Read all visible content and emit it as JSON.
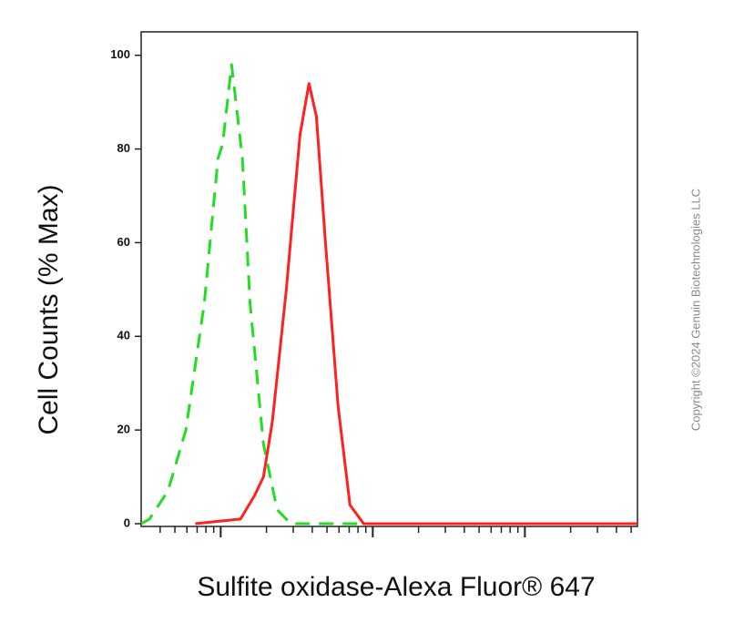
{
  "chart_data": {
    "type": "line",
    "y_label": "Cell Counts (% Max)",
    "x_label": "Sulfite oxidase-Alexa Fluor® 647",
    "copyright": "Copyright ©2024 Genuin Biotechnologies LLC",
    "xscale": "log",
    "xlim": [
      30,
      55000
    ],
    "xticks": [
      40,
      50,
      60,
      70,
      80,
      90,
      100,
      200,
      300,
      400,
      500,
      600,
      700,
      800,
      900,
      1000,
      2000,
      3000,
      4000,
      5000,
      6000,
      7000,
      8000,
      9000,
      10000,
      20000,
      30000,
      40000,
      50000
    ],
    "ylim": [
      0,
      105
    ],
    "yticks": [
      0,
      20,
      40,
      60,
      80,
      100
    ],
    "series": [
      {
        "color": "#22dd22",
        "dash": true,
        "x": [
          30,
          34,
          45,
          59,
          78,
          96,
          103,
          118,
          126,
          139,
          156,
          191,
          235,
          289,
          1000,
          55000
        ],
        "values": [
          0,
          1,
          7,
          20,
          47,
          78,
          81,
          98,
          90,
          78,
          47,
          17,
          3,
          0,
          0,
          0
        ]
      },
      {
        "color": "#ff2020",
        "dash": false,
        "x": [
          68,
          96,
          135,
          167,
          191,
          219,
          270,
          332,
          381,
          426,
          489,
          592,
          708,
          871,
          1500,
          55000
        ],
        "values": [
          0,
          0.5,
          1,
          6,
          10,
          22,
          50,
          83,
          94,
          87,
          60,
          25,
          4,
          0,
          0,
          0
        ]
      }
    ]
  }
}
